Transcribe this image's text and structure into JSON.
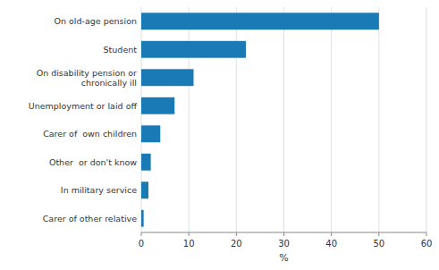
{
  "chart_data": {
    "type": "bar",
    "orientation": "horizontal",
    "categories": [
      "Carer of other relative",
      "In military service",
      "Other  or don't know",
      "Carer of  own children",
      "Unemployment or laid off",
      "On disability pension or\nchronically ill",
      "Student",
      "On old-age pension"
    ],
    "values": [
      0.5,
      1.5,
      2.0,
      4.0,
      7.0,
      11.0,
      22.0,
      50.0
    ],
    "color": "#1a7ab5",
    "xlabel": "%",
    "xlim": [
      0,
      60
    ],
    "xticks": [
      0,
      10,
      20,
      30,
      40,
      50,
      60
    ],
    "grid": true
  }
}
